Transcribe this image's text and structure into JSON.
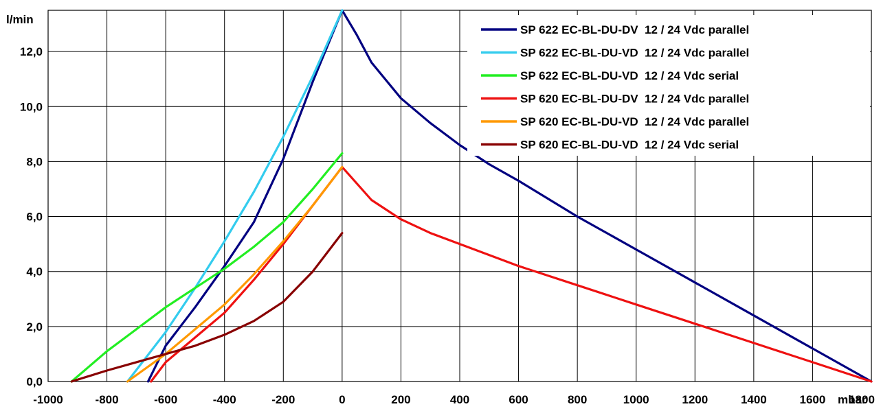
{
  "chart_data": {
    "type": "line",
    "title": "",
    "xlabel": "mbar",
    "ylabel": "l/min",
    "xlim": [
      -1000,
      1800
    ],
    "ylim": [
      0,
      13.5
    ],
    "x_ticks": [
      -1000,
      -800,
      -600,
      -400,
      -200,
      0,
      200,
      400,
      600,
      800,
      1000,
      1200,
      1400,
      1600,
      1800
    ],
    "x_tick_labels": [
      "-1000",
      "-800",
      "-600",
      "-400",
      "-200",
      "0",
      "200",
      "400",
      "600",
      "800",
      "1000",
      "1200",
      "1400",
      "1600",
      "1800"
    ],
    "y_ticks": [
      0,
      2,
      4,
      6,
      8,
      10,
      12
    ],
    "y_tick_labels": [
      "0,0",
      "2,0",
      "4,0",
      "6,0",
      "8,0",
      "10,0",
      "12,0"
    ],
    "grid": true,
    "legend_position": "top-right",
    "series": [
      {
        "name": "SP 622 EC-BL-DU-DV 12 / 24 Vdc parallel",
        "color": "#000080",
        "points": [
          [
            -660,
            0
          ],
          [
            -600,
            1.3
          ],
          [
            -500,
            2.7
          ],
          [
            -400,
            4.2
          ],
          [
            -300,
            5.8
          ],
          [
            -200,
            8.1
          ],
          [
            -100,
            10.9
          ],
          [
            0,
            13.5
          ],
          [
            50,
            12.6
          ],
          [
            100,
            11.6
          ],
          [
            200,
            10.3
          ],
          [
            300,
            9.4
          ],
          [
            400,
            8.6
          ],
          [
            500,
            7.9
          ],
          [
            600,
            7.3
          ],
          [
            800,
            6.0
          ],
          [
            1000,
            4.8
          ],
          [
            1200,
            3.6
          ],
          [
            1400,
            2.4
          ],
          [
            1600,
            1.2
          ],
          [
            1800,
            0
          ]
        ]
      },
      {
        "name": "SP 622 EC-BL-DU-VD 12 / 24 Vdc parallel",
        "color": "#33CCEE",
        "points": [
          [
            -730,
            0
          ],
          [
            -600,
            1.8
          ],
          [
            -500,
            3.4
          ],
          [
            -400,
            5.1
          ],
          [
            -300,
            6.9
          ],
          [
            -200,
            8.9
          ],
          [
            -100,
            11.1
          ],
          [
            0,
            13.5
          ]
        ]
      },
      {
        "name": "SP 622 EC-BL-DU-VD 12 / 24 Vdc serial",
        "color": "#22EE22",
        "points": [
          [
            -920,
            0
          ],
          [
            -800,
            1.1
          ],
          [
            -700,
            1.9
          ],
          [
            -600,
            2.7
          ],
          [
            -500,
            3.4
          ],
          [
            -400,
            4.1
          ],
          [
            -300,
            4.9
          ],
          [
            -200,
            5.8
          ],
          [
            -100,
            7.0
          ],
          [
            0,
            8.3
          ]
        ]
      },
      {
        "name": "SP 620 EC-BL-DU-DV 12 / 24 Vdc parallel",
        "color": "#EE1111",
        "points": [
          [
            -650,
            0
          ],
          [
            -600,
            0.7
          ],
          [
            -500,
            1.6
          ],
          [
            -400,
            2.5
          ],
          [
            -300,
            3.7
          ],
          [
            -200,
            5.0
          ],
          [
            -100,
            6.4
          ],
          [
            0,
            7.8
          ],
          [
            50,
            7.2
          ],
          [
            100,
            6.6
          ],
          [
            200,
            5.9
          ],
          [
            300,
            5.4
          ],
          [
            400,
            5.0
          ],
          [
            600,
            4.2
          ],
          [
            800,
            3.5
          ],
          [
            1000,
            2.8
          ],
          [
            1200,
            2.1
          ],
          [
            1400,
            1.4
          ],
          [
            1600,
            0.7
          ],
          [
            1800,
            0
          ]
        ]
      },
      {
        "name": "SP 620 EC-BL-DU-VD 12 / 24 Vdc parallel",
        "color": "#FF9900",
        "points": [
          [
            -730,
            0
          ],
          [
            -600,
            1.0
          ],
          [
            -500,
            1.9
          ],
          [
            -400,
            2.8
          ],
          [
            -300,
            3.9
          ],
          [
            -200,
            5.1
          ],
          [
            -100,
            6.4
          ],
          [
            0,
            7.8
          ]
        ]
      },
      {
        "name": "SP 620 EC-BL-DU-VD 12 / 24 Vdc serial",
        "color": "#880000",
        "points": [
          [
            -920,
            0
          ],
          [
            -800,
            0.4
          ],
          [
            -700,
            0.7
          ],
          [
            -600,
            1.0
          ],
          [
            -500,
            1.3
          ],
          [
            -400,
            1.7
          ],
          [
            -300,
            2.2
          ],
          [
            -200,
            2.9
          ],
          [
            -100,
            4.0
          ],
          [
            0,
            5.4
          ]
        ]
      }
    ]
  }
}
